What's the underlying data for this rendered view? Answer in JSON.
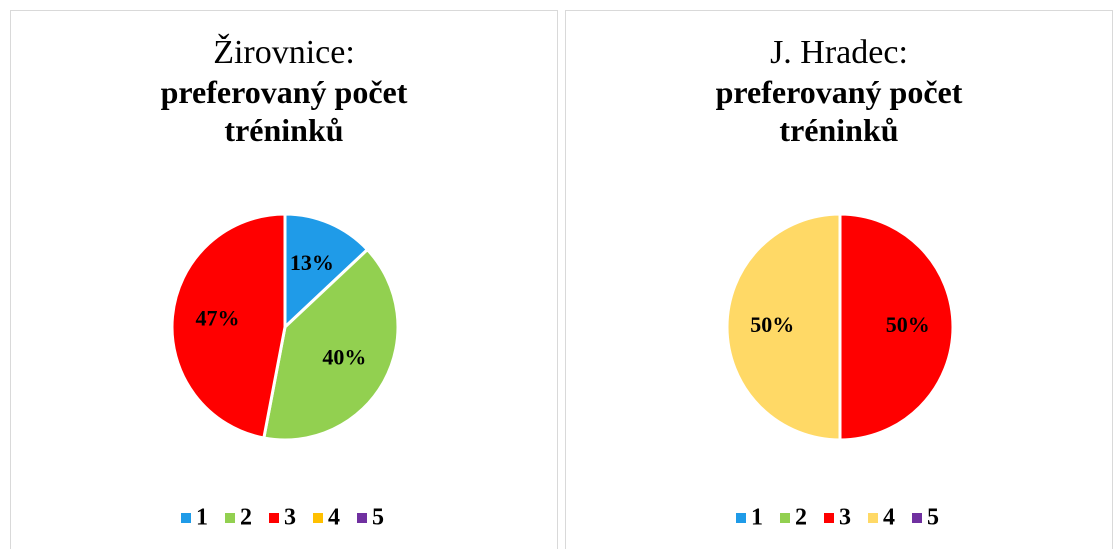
{
  "chart_data": [
    {
      "type": "pie",
      "title": "Žirovnice:",
      "subtitle": "preferovaný počet tréninků",
      "categories": [
        "1",
        "2",
        "3",
        "4",
        "5"
      ],
      "values": [
        13,
        40,
        47,
        0,
        0
      ],
      "value_labels": [
        "13%",
        "40%",
        "47%",
        null,
        null
      ],
      "colors": [
        "#1f9be8",
        "#92d050",
        "#ff0000",
        "#ffc000",
        "#7030a0"
      ]
    },
    {
      "type": "pie",
      "title": "J. Hradec:",
      "subtitle": "preferovaný počet tréninků",
      "categories": [
        "1",
        "2",
        "3",
        "4",
        "5"
      ],
      "values": [
        0,
        0,
        50,
        50,
        0
      ],
      "value_labels": [
        null,
        null,
        "50%",
        "50%",
        null
      ],
      "colors": [
        "#1f9be8",
        "#92d050",
        "#ff0000",
        "#ffd966",
        "#7030a0"
      ]
    }
  ]
}
